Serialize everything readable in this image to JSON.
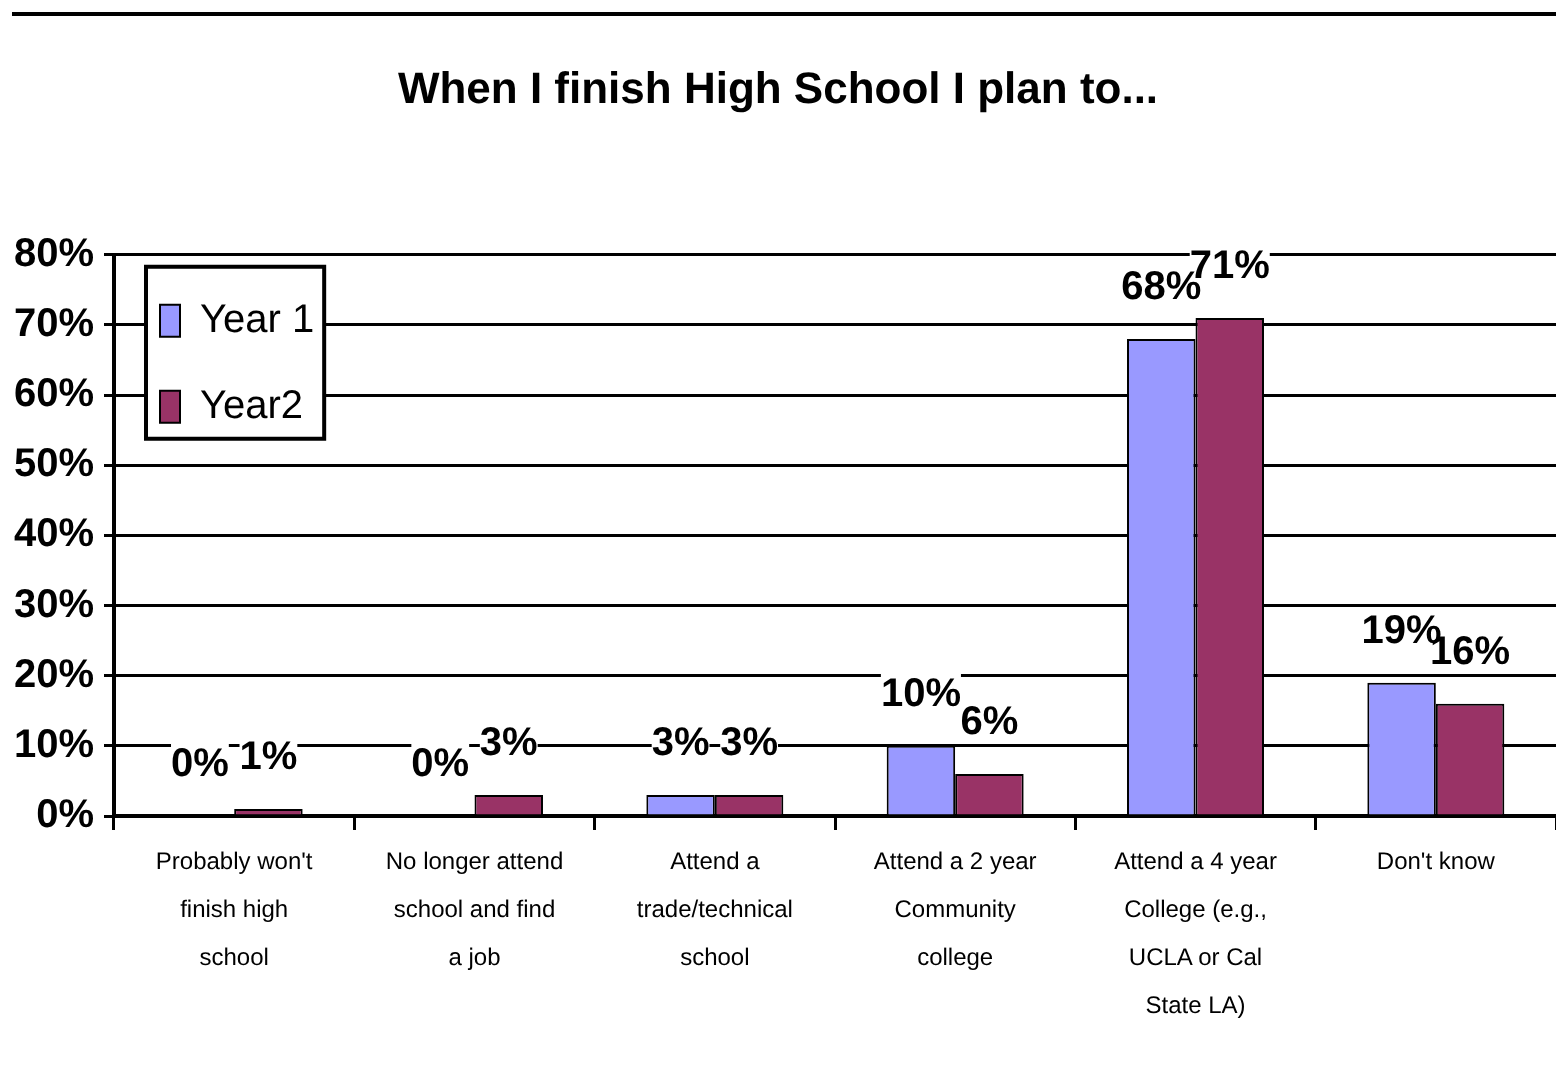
{
  "chart_data": {
    "type": "bar",
    "title": "When I finish High School I plan to...",
    "categories": [
      "Probably won't finish high school",
      "No longer attend school and find a job",
      "Attend a trade/technical school",
      "Attend a 2 year Community college",
      "Attend a 4 year College (e.g., UCLA or Cal State LA)",
      "Don't know"
    ],
    "series": [
      {
        "name": "Year 1",
        "color": "#9999ff",
        "values": [
          0,
          0,
          3,
          10,
          68,
          19
        ],
        "value_labels": [
          "0%",
          "0%",
          "3%",
          "10%",
          "68%",
          "19%"
        ]
      },
      {
        "name": "Year2",
        "color": "#993366",
        "values": [
          1,
          3,
          3,
          6,
          71,
          16
        ],
        "value_labels": [
          "1%",
          "3%",
          "3%",
          "6%",
          "71%",
          "16%"
        ]
      }
    ],
    "ylim": [
      0,
      80
    ],
    "yticks": [
      {
        "value": 0,
        "label": "0%"
      },
      {
        "value": 10,
        "label": "10%"
      },
      {
        "value": 20,
        "label": "20%"
      },
      {
        "value": 30,
        "label": "30%"
      },
      {
        "value": 40,
        "label": "40%"
      },
      {
        "value": 50,
        "label": "50%"
      },
      {
        "value": 60,
        "label": "60%"
      },
      {
        "value": 70,
        "label": "70%"
      },
      {
        "value": 80,
        "label": "80%"
      }
    ],
    "grid": "y",
    "legend": "top left"
  }
}
